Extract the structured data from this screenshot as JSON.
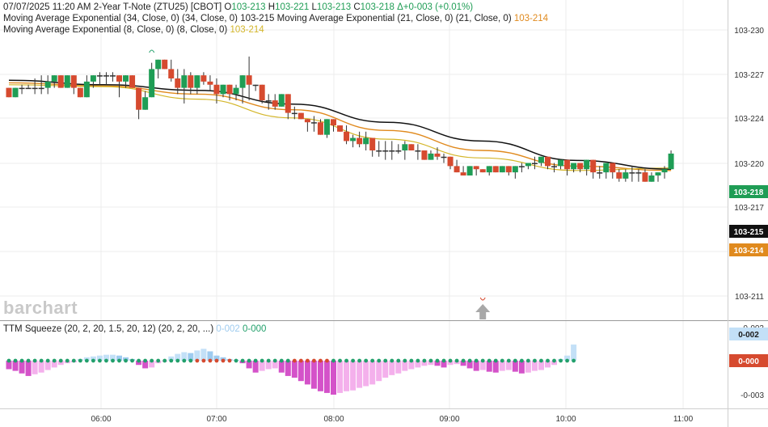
{
  "header": {
    "line1": {
      "datetime": "07/07/2025  11:20 AM",
      "instrument": "2-Year T-Note (ZTU25) [CBOT]",
      "o_label": "O",
      "o_value": "103-213",
      "h_label": "H",
      "h_value": "103-221",
      "l_label": "L",
      "l_value": "103-213",
      "c_label": "C",
      "c_value": "103-218",
      "change": "Δ+0-003 (+0.01%)"
    },
    "line2": {
      "ema34_label": "Moving Average Exponential (34, Close, 0)",
      "ema34_params": "(34, Close, 0)",
      "ema34_value": "103-215",
      "ema21_label": "Moving Average Exponential (21, Close, 0)",
      "ema21_params": "(21, Close, 0)",
      "ema21_value": "103-214"
    },
    "line3": {
      "ema8_label": "Moving Average Exponential (8, Close, 0)",
      "ema8_params": "(8, Close, 0)",
      "ema8_value": "103-214"
    }
  },
  "watermark": "barchart",
  "squeeze_header": {
    "label": "TTM Squeeze (20, 2, 20, 1.5, 20, 12)",
    "params": "(20, 2, 20, ...)",
    "value1": "0-002",
    "value2": "0-000"
  },
  "colors": {
    "up": "#1f9d55",
    "down": "#d64a2f",
    "ema34": "#111111",
    "ema21": "#e08a1e",
    "ema8": "#d4b62a",
    "hist_magenta": "#d452c9",
    "hist_pink": "#f4b0ec",
    "hist_blue": "#9ecbef",
    "hist_lightblue": "#c3e0f7",
    "dot_green": "#22a06b",
    "dot_red": "#d64a2f"
  },
  "chart_data": [
    {
      "type": "candlestick",
      "title": "2-Year T-Note (ZTU25) [CBOT]",
      "y_unit": "points (32nds, decimal approx)",
      "ylim": [
        103.2,
        103.25
      ],
      "y_ticks": [
        "103-230",
        "103-227",
        "103-224",
        "103-220",
        "103-217",
        "103-211"
      ],
      "x_ticks": [
        "06:00",
        "07:00",
        "08:00",
        "09:00",
        "10:00",
        "11:00"
      ],
      "last_price_labels": [
        {
          "text": "103-218",
          "series": "close"
        },
        {
          "text": "103-215",
          "series": "ema34"
        },
        {
          "text": "103-214",
          "series": "ema21"
        }
      ],
      "candles": [
        {
          "o": 103.237,
          "h": 103.237,
          "l": 103.2355,
          "c": 103.2355
        },
        {
          "o": 103.2355,
          "h": 103.237,
          "l": 103.2355,
          "c": 103.237
        },
        {
          "o": 103.237,
          "h": 103.2375,
          "l": 103.236,
          "c": 103.237
        },
        {
          "o": 103.237,
          "h": 103.2375,
          "l": 103.237,
          "c": 103.237
        },
        {
          "o": 103.237,
          "h": 103.2385,
          "l": 103.236,
          "c": 103.237
        },
        {
          "o": 103.237,
          "h": 103.239,
          "l": 103.236,
          "c": 103.237
        },
        {
          "o": 103.237,
          "h": 103.239,
          "l": 103.236,
          "c": 103.238
        },
        {
          "o": 103.238,
          "h": 103.239,
          "l": 103.237,
          "c": 103.239
        },
        {
          "o": 103.239,
          "h": 103.239,
          "l": 103.237,
          "c": 103.237
        },
        {
          "o": 103.237,
          "h": 103.239,
          "l": 103.237,
          "c": 103.239
        },
        {
          "o": 103.239,
          "h": 103.239,
          "l": 103.236,
          "c": 103.237
        },
        {
          "o": 103.237,
          "h": 103.237,
          "l": 103.2355,
          "c": 103.2355
        },
        {
          "o": 103.2355,
          "h": 103.239,
          "l": 103.2355,
          "c": 103.238
        },
        {
          "o": 103.238,
          "h": 103.239,
          "l": 103.237,
          "c": 103.239
        },
        {
          "o": 103.239,
          "h": 103.2395,
          "l": 103.2375,
          "c": 103.239
        },
        {
          "o": 103.239,
          "h": 103.2395,
          "l": 103.2375,
          "c": 103.239
        },
        {
          "o": 103.239,
          "h": 103.2395,
          "l": 103.238,
          "c": 103.239
        },
        {
          "o": 103.239,
          "h": 103.239,
          "l": 103.2355,
          "c": 103.238
        },
        {
          "o": 103.238,
          "h": 103.239,
          "l": 103.237,
          "c": 103.239
        },
        {
          "o": 103.239,
          "h": 103.239,
          "l": 103.237,
          "c": 103.237
        },
        {
          "o": 103.237,
          "h": 103.237,
          "l": 103.232,
          "c": 103.2335
        },
        {
          "o": 103.2335,
          "h": 103.2365,
          "l": 103.2335,
          "c": 103.2355
        },
        {
          "o": 103.2355,
          "h": 103.241,
          "l": 103.2355,
          "c": 103.24
        },
        {
          "o": 103.24,
          "h": 103.2415,
          "l": 103.2385,
          "c": 103.2415
        },
        {
          "o": 103.2415,
          "h": 103.2415,
          "l": 103.24,
          "c": 103.24
        },
        {
          "o": 103.24,
          "h": 103.2415,
          "l": 103.238,
          "c": 103.2385
        },
        {
          "o": 103.2385,
          "h": 103.24,
          "l": 103.236,
          "c": 103.237
        },
        {
          "o": 103.237,
          "h": 103.24,
          "l": 103.2345,
          "c": 103.239
        },
        {
          "o": 103.239,
          "h": 103.2395,
          "l": 103.236,
          "c": 103.237
        },
        {
          "o": 103.237,
          "h": 103.239,
          "l": 103.236,
          "c": 103.239
        },
        {
          "o": 103.239,
          "h": 103.2395,
          "l": 103.2375,
          "c": 103.238
        },
        {
          "o": 103.238,
          "h": 103.239,
          "l": 103.2365,
          "c": 103.2375
        },
        {
          "o": 103.2375,
          "h": 103.2385,
          "l": 103.2345,
          "c": 103.236
        },
        {
          "o": 103.236,
          "h": 103.2375,
          "l": 103.2355,
          "c": 103.2375
        },
        {
          "o": 103.2375,
          "h": 103.2375,
          "l": 103.235,
          "c": 103.236
        },
        {
          "o": 103.236,
          "h": 103.2375,
          "l": 103.235,
          "c": 103.237
        },
        {
          "o": 103.237,
          "h": 103.239,
          "l": 103.2345,
          "c": 103.239
        },
        {
          "o": 103.239,
          "h": 103.242,
          "l": 103.235,
          "c": 103.2375
        },
        {
          "o": 103.2375,
          "h": 103.2375,
          "l": 103.2365,
          "c": 103.2375
        },
        {
          "o": 103.2375,
          "h": 103.2375,
          "l": 103.2345,
          "c": 103.235
        },
        {
          "o": 103.235,
          "h": 103.236,
          "l": 103.2335,
          "c": 103.235
        },
        {
          "o": 103.235,
          "h": 103.236,
          "l": 103.2335,
          "c": 103.234
        },
        {
          "o": 103.234,
          "h": 103.236,
          "l": 103.234,
          "c": 103.236
        },
        {
          "o": 103.236,
          "h": 103.236,
          "l": 103.232,
          "c": 103.233
        },
        {
          "o": 103.233,
          "h": 103.234,
          "l": 103.232,
          "c": 103.233
        },
        {
          "o": 103.233,
          "h": 103.233,
          "l": 103.232,
          "c": 103.232
        },
        {
          "o": 103.232,
          "h": 103.232,
          "l": 103.23,
          "c": 103.2315
        },
        {
          "o": 103.2315,
          "h": 103.2325,
          "l": 103.23,
          "c": 103.2315
        },
        {
          "o": 103.2315,
          "h": 103.232,
          "l": 103.2295,
          "c": 103.2295
        },
        {
          "o": 103.2295,
          "h": 103.232,
          "l": 103.229,
          "c": 103.232
        },
        {
          "o": 103.232,
          "h": 103.232,
          "l": 103.23,
          "c": 103.231
        },
        {
          "o": 103.231,
          "h": 103.231,
          "l": 103.23,
          "c": 103.23
        },
        {
          "o": 103.23,
          "h": 103.231,
          "l": 103.228,
          "c": 103.2285
        },
        {
          "o": 103.2285,
          "h": 103.2295,
          "l": 103.2275,
          "c": 103.229
        },
        {
          "o": 103.229,
          "h": 103.23,
          "l": 103.2275,
          "c": 103.228
        },
        {
          "o": 103.228,
          "h": 103.23,
          "l": 103.227,
          "c": 103.229
        },
        {
          "o": 103.229,
          "h": 103.229,
          "l": 103.226,
          "c": 103.227
        },
        {
          "o": 103.227,
          "h": 103.2285,
          "l": 103.226,
          "c": 103.227
        },
        {
          "o": 103.227,
          "h": 103.2285,
          "l": 103.2255,
          "c": 103.227
        },
        {
          "o": 103.227,
          "h": 103.2285,
          "l": 103.2255,
          "c": 103.227
        },
        {
          "o": 103.227,
          "h": 103.228,
          "l": 103.2265,
          "c": 103.227
        },
        {
          "o": 103.227,
          "h": 103.2285,
          "l": 103.2255,
          "c": 103.228
        },
        {
          "o": 103.228,
          "h": 103.228,
          "l": 103.227,
          "c": 103.227
        },
        {
          "o": 103.227,
          "h": 103.228,
          "l": 103.2255,
          "c": 103.227
        },
        {
          "o": 103.227,
          "h": 103.227,
          "l": 103.2255,
          "c": 103.2255
        },
        {
          "o": 103.2255,
          "h": 103.227,
          "l": 103.2255,
          "c": 103.2265
        },
        {
          "o": 103.2265,
          "h": 103.2275,
          "l": 103.2255,
          "c": 103.226
        },
        {
          "o": 103.226,
          "h": 103.2265,
          "l": 103.225,
          "c": 103.226
        },
        {
          "o": 103.226,
          "h": 103.226,
          "l": 103.224,
          "c": 103.2245
        },
        {
          "o": 103.2245,
          "h": 103.2255,
          "l": 103.2235,
          "c": 103.2235
        },
        {
          "o": 103.2235,
          "h": 103.2245,
          "l": 103.223,
          "c": 103.223
        },
        {
          "o": 103.223,
          "h": 103.2245,
          "l": 103.223,
          "c": 103.2245
        },
        {
          "o": 103.2245,
          "h": 103.2245,
          "l": 103.223,
          "c": 103.224
        },
        {
          "o": 103.224,
          "h": 103.224,
          "l": 103.2235,
          "c": 103.2235
        },
        {
          "o": 103.2235,
          "h": 103.2245,
          "l": 103.223,
          "c": 103.2245
        },
        {
          "o": 103.2245,
          "h": 103.2245,
          "l": 103.2235,
          "c": 103.2235
        },
        {
          "o": 103.2235,
          "h": 103.2245,
          "l": 103.2235,
          "c": 103.2245
        },
        {
          "o": 103.2245,
          "h": 103.2245,
          "l": 103.223,
          "c": 103.2235
        },
        {
          "o": 103.2235,
          "h": 103.2245,
          "l": 103.2225,
          "c": 103.2245
        },
        {
          "o": 103.2245,
          "h": 103.225,
          "l": 103.2235,
          "c": 103.2245
        },
        {
          "o": 103.2245,
          "h": 103.225,
          "l": 103.224,
          "c": 103.225
        },
        {
          "o": 103.225,
          "h": 103.226,
          "l": 103.224,
          "c": 103.225
        },
        {
          "o": 103.225,
          "h": 103.226,
          "l": 103.2245,
          "c": 103.226
        },
        {
          "o": 103.226,
          "h": 103.226,
          "l": 103.224,
          "c": 103.2245
        },
        {
          "o": 103.2245,
          "h": 103.225,
          "l": 103.2235,
          "c": 103.2245
        },
        {
          "o": 103.2245,
          "h": 103.2255,
          "l": 103.224,
          "c": 103.2255
        },
        {
          "o": 103.2255,
          "h": 103.2255,
          "l": 103.223,
          "c": 103.224
        },
        {
          "o": 103.224,
          "h": 103.225,
          "l": 103.2235,
          "c": 103.225
        },
        {
          "o": 103.225,
          "h": 103.225,
          "l": 103.2235,
          "c": 103.224
        },
        {
          "o": 103.224,
          "h": 103.2255,
          "l": 103.223,
          "c": 103.2255
        },
        {
          "o": 103.2255,
          "h": 103.2255,
          "l": 103.2225,
          "c": 103.2235
        },
        {
          "o": 103.2235,
          "h": 103.2245,
          "l": 103.2225,
          "c": 103.2235
        },
        {
          "o": 103.2235,
          "h": 103.225,
          "l": 103.2225,
          "c": 103.225
        },
        {
          "o": 103.225,
          "h": 103.225,
          "l": 103.2225,
          "c": 103.2235
        },
        {
          "o": 103.2235,
          "h": 103.224,
          "l": 103.222,
          "c": 103.2225
        },
        {
          "o": 103.2225,
          "h": 103.224,
          "l": 103.222,
          "c": 103.2235
        },
        {
          "o": 103.2235,
          "h": 103.2245,
          "l": 103.222,
          "c": 103.2235
        },
        {
          "o": 103.2235,
          "h": 103.224,
          "l": 103.222,
          "c": 103.2235
        },
        {
          "o": 103.2235,
          "h": 103.224,
          "l": 103.222,
          "c": 103.222
        },
        {
          "o": 103.222,
          "h": 103.2235,
          "l": 103.222,
          "c": 103.223
        },
        {
          "o": 103.223,
          "h": 103.2235,
          "l": 103.222,
          "c": 103.2235
        },
        {
          "o": 103.2235,
          "h": 103.2245,
          "l": 103.2225,
          "c": 103.224
        },
        {
          "o": 103.224,
          "h": 103.227,
          "l": 103.224,
          "c": 103.2265
        }
      ],
      "ema34": [
        103.2382,
        103.2375,
        103.2366,
        103.2344,
        103.2315,
        103.2285,
        103.2254,
        103.224
      ],
      "ema21": [
        103.2378,
        103.2373,
        103.236,
        103.2335,
        103.2302,
        103.227,
        103.2245,
        103.2238
      ],
      "ema8": [
        103.2375,
        103.2372,
        103.2352,
        103.2322,
        103.2288,
        103.2258,
        103.2238,
        103.2242
      ],
      "markers": [
        {
          "kind": "swing-high",
          "bar_index": 22
        },
        {
          "kind": "swing-low-arrow",
          "bar_index": 73
        }
      ]
    },
    {
      "type": "histogram",
      "title": "TTM Squeeze (20, 2, 20, 1.5, 20, 12)",
      "y_ticks": [
        "0-003",
        "-0-003"
      ],
      "ylim": [
        -0.004,
        0.004
      ],
      "last_value_labels": [
        "0-002",
        "0-000"
      ],
      "values": [
        -0.001,
        -0.0012,
        -0.0015,
        -0.0018,
        -0.0016,
        -0.0014,
        -0.0011,
        -0.0008,
        -0.0005,
        -0.0003,
        -0.0002,
        0.0002,
        0.0004,
        0.0005,
        0.0006,
        0.0007,
        0.0007,
        0.0006,
        0.0004,
        0.0002,
        -0.0005,
        -0.0009,
        -0.0008,
        -0.0003,
        -0.0001,
        0.0005,
        0.0008,
        0.001,
        0.0009,
        0.0012,
        0.0014,
        0.0011,
        0.0006,
        0.0004,
        0.0002,
        0.0001,
        -0.0003,
        -0.0009,
        -0.0014,
        -0.0012,
        -0.001,
        -0.0009,
        -0.0014,
        -0.0018,
        -0.002,
        -0.0024,
        -0.0028,
        -0.0033,
        -0.0036,
        -0.0038,
        -0.004,
        -0.0038,
        -0.0036,
        -0.0035,
        -0.0032,
        -0.003,
        -0.0028,
        -0.0024,
        -0.002,
        -0.0017,
        -0.0015,
        -0.0012,
        -0.001,
        -0.0008,
        -0.0006,
        -0.0005,
        -0.0006,
        -0.0008,
        -0.0005,
        -0.0004,
        -0.0006,
        -0.0009,
        -0.0012,
        -0.0011,
        -0.0013,
        -0.0014,
        -0.0012,
        -0.0011,
        -0.0013,
        -0.0015,
        -0.0014,
        -0.0012,
        -0.0011,
        -0.0008,
        -0.0005,
        0.0002,
        0.0006,
        0.0019
      ],
      "dot_colors_note": "green dots when squeeze off, red dots when on",
      "dots_red_ranges": [
        [
          29,
          34
        ],
        [
          44,
          49
        ]
      ]
    }
  ]
}
